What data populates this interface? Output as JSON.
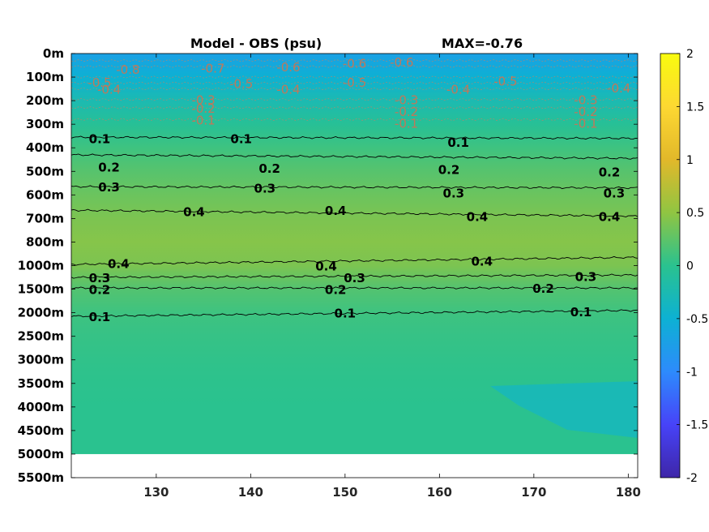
{
  "chart_data": {
    "type": "heatmap",
    "title_left": "Model - OBS (psu)",
    "title_right": "MAX=-0.76",
    "x_ticks": [
      130,
      140,
      150,
      160,
      170,
      180
    ],
    "xlim": [
      121,
      181
    ],
    "y_ticks": [
      "0m",
      "100m",
      "200m",
      "300m",
      "400m",
      "500m",
      "600m",
      "700m",
      "800m",
      "1000m",
      "1500m",
      "2000m",
      "2500m",
      "3000m",
      "3500m",
      "4000m",
      "4500m",
      "5000m",
      "5500m"
    ],
    "data_bottom": "5000m",
    "colorbar": {
      "range": [
        -2,
        2
      ],
      "ticks": [
        "2",
        "1.5",
        "1",
        "0.5",
        "0",
        "-0.5",
        "-1",
        "-1.5",
        "-2"
      ],
      "colors": [
        "#3e26a8",
        "#4743f8",
        "#2d8bfc",
        "#0db1d3",
        "#2ac28f",
        "#90c542",
        "#e2b82a",
        "#fdd832",
        "#f9fb0e"
      ]
    },
    "bands": [
      {
        "depth": "0m",
        "value": -0.72
      },
      {
        "depth": "100m",
        "value": -0.5
      },
      {
        "depth": "200m",
        "value": -0.25
      },
      {
        "depth": "300m",
        "value": -0.05
      },
      {
        "depth": "400m",
        "value": 0.1
      },
      {
        "depth": "500m",
        "value": 0.22
      },
      {
        "depth": "600m",
        "value": 0.32
      },
      {
        "depth": "700m",
        "value": 0.4
      },
      {
        "depth": "800m",
        "value": 0.45
      },
      {
        "depth": "1000m",
        "value": 0.4
      },
      {
        "depth": "1500m",
        "value": 0.2
      },
      {
        "depth": "2000m",
        "value": 0.1
      },
      {
        "depth": "2500m",
        "value": 0.06
      },
      {
        "depth": "3000m",
        "value": 0.03
      },
      {
        "depth": "3500m",
        "value": 0.01
      },
      {
        "depth": "4000m",
        "value": 0.0
      },
      {
        "depth": "4500m",
        "value": 0.0
      },
      {
        "depth": "5000m",
        "value": 0.0
      }
    ],
    "contours": [
      {
        "level": "0.1",
        "depth_x": [
          [
            121,
            3.55
          ],
          [
            181,
            3.6
          ]
        ],
        "labels": [
          [
            124,
            3.6
          ],
          [
            139,
            3.6
          ],
          [
            162,
            3.75
          ],
          [
            139,
            3.6
          ]
        ]
      },
      {
        "level": "0.2",
        "depth_x": [
          [
            121,
            4.3
          ],
          [
            181,
            4.45
          ]
        ],
        "labels": [
          [
            125,
            4.8
          ],
          [
            142,
            4.85
          ],
          [
            161,
            4.9
          ],
          [
            178,
            5.0
          ]
        ]
      },
      {
        "level": "0.3",
        "depth_x": [
          [
            121,
            5.65
          ],
          [
            181,
            5.7
          ]
        ],
        "labels": [
          [
            125,
            5.65
          ],
          [
            141.5,
            5.7
          ],
          [
            161.5,
            5.9
          ],
          [
            178.5,
            5.9
          ]
        ]
      },
      {
        "level": "0.4",
        "depth_x": [
          [
            121,
            6.65
          ],
          [
            181,
            6.9
          ]
        ],
        "labels": [
          [
            134,
            6.7
          ],
          [
            149,
            6.65
          ],
          [
            164,
            6.9
          ],
          [
            178,
            6.9
          ]
        ]
      },
      {
        "level": "0.4",
        "depth_x": [
          [
            121,
            8.95
          ],
          [
            181,
            8.65
          ]
        ],
        "labels": [
          [
            126,
            8.9
          ],
          [
            148,
            9.0
          ],
          [
            164.5,
            8.8
          ]
        ]
      },
      {
        "level": "0.3",
        "depth_x": [
          [
            121,
            9.5
          ],
          [
            181,
            9.4
          ]
        ],
        "labels": [
          [
            124,
            9.5
          ],
          [
            151,
            9.5
          ],
          [
            175.5,
            9.45
          ]
        ]
      },
      {
        "level": "0.2",
        "depth_x": [
          [
            121,
            9.95
          ],
          [
            181,
            9.95
          ]
        ],
        "labels": [
          [
            124,
            10.0
          ],
          [
            149,
            10.0
          ],
          [
            171,
            9.95
          ]
        ]
      },
      {
        "level": "0.1",
        "depth_x": [
          [
            121,
            11.15
          ],
          [
            181,
            10.9
          ]
        ],
        "labels": [
          [
            124,
            11.15
          ],
          [
            150,
            11.0
          ],
          [
            175,
            10.95
          ]
        ]
      }
    ],
    "neg_labels": [
      {
        "text": "-0.8",
        "x": 127,
        "yi": 0.65
      },
      {
        "text": "-0.7",
        "x": 136,
        "yi": 0.6
      },
      {
        "text": "-0.6",
        "x": 144,
        "yi": 0.55
      },
      {
        "text": "-0.6",
        "x": 151,
        "yi": 0.4
      },
      {
        "text": "-0.6",
        "x": 156,
        "yi": 0.35
      },
      {
        "text": "-0.5",
        "x": 124,
        "yi": 1.2
      },
      {
        "text": "-0.4",
        "x": 125,
        "yi": 1.5
      },
      {
        "text": "-0.5",
        "x": 139,
        "yi": 1.25
      },
      {
        "text": "-0.4",
        "x": 144,
        "yi": 1.5
      },
      {
        "text": "-0.5",
        "x": 151,
        "yi": 1.2
      },
      {
        "text": "-0.4",
        "x": 162,
        "yi": 1.5
      },
      {
        "text": "-0.5",
        "x": 167,
        "yi": 1.15
      },
      {
        "text": "-0.4",
        "x": 179,
        "yi": 1.45
      },
      {
        "text": "-0.3",
        "x": 135,
        "yi": 1.95
      },
      {
        "text": "-0.2",
        "x": 135,
        "yi": 2.3
      },
      {
        "text": "-0.1",
        "x": 135,
        "yi": 2.8
      },
      {
        "text": "-0.3",
        "x": 156.5,
        "yi": 1.95
      },
      {
        "text": "-0.2",
        "x": 156.5,
        "yi": 2.45
      },
      {
        "text": "-0.1",
        "x": 156.5,
        "yi": 2.95
      },
      {
        "text": "-0.3",
        "x": 175.5,
        "yi": 1.95
      },
      {
        "text": "-0.2",
        "x": 175.5,
        "yi": 2.45
      },
      {
        "text": "-0.1",
        "x": 175.5,
        "yi": 2.95
      }
    ]
  }
}
